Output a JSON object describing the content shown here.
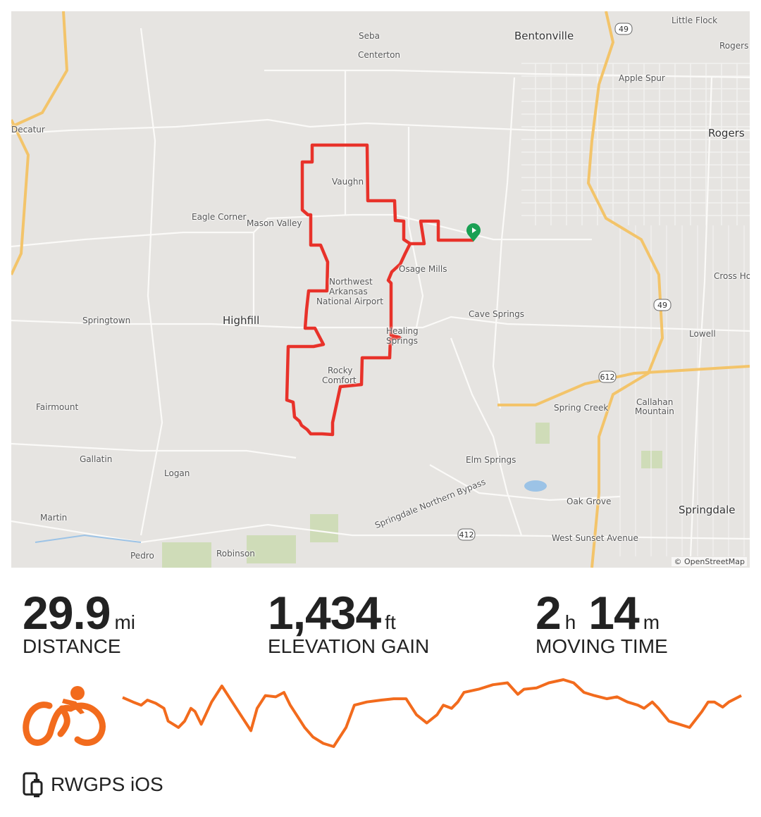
{
  "map": {
    "attribution": "© OpenStreetMap",
    "labels": [
      "Seba",
      "Bentonville",
      "Little Flock",
      "Centerton",
      "Rogers",
      "Apple Spur",
      "Decatur",
      "Rogers",
      "Vaughn",
      "Eagle Corner",
      "Mason Valley",
      "Osage Mills",
      "Cross Hol",
      "Northwest",
      "Arkansas",
      "National Airport",
      "Cave Springs",
      "Springtown",
      "Highfill",
      "Healing",
      "Springs",
      "Lowell",
      "Rocky",
      "Comfort",
      "Spring Creek",
      "Callahan",
      "Mountain",
      "Fairmount",
      "Elm Springs",
      "Gallatin",
      "Logan",
      "Oak Grove",
      "Springdale",
      "Martin",
      "Springdale Northern Bypass",
      "West Sunset Avenue",
      "Pedro",
      "Robinson"
    ],
    "shields": [
      "49",
      "49",
      "612",
      "412"
    ],
    "route_color": "#e8322a",
    "start_marker_color": "#1aa053"
  },
  "stats": [
    {
      "value": "29.9",
      "unit": "mi",
      "label": "DISTANCE"
    },
    {
      "value": "1,434",
      "unit": "ft",
      "label": "ELEVATION GAIN"
    },
    {
      "value": "2",
      "unit": "h",
      "value2": "14",
      "unit2": "m",
      "label": "MOVING TIME"
    }
  ],
  "activity_icon": "cyclist-icon",
  "accent_color": "#f26b1d",
  "elevation_profile": {
    "distance_mi": [
      0,
      0.5,
      0.9,
      1.2,
      1.6,
      2.0,
      2.2,
      2.7,
      3.0,
      3.3,
      3.5,
      3.8,
      4.3,
      4.8,
      5.3,
      5.8,
      6.2,
      6.5,
      6.9,
      7.4,
      7.8,
      8.1,
      8.4,
      8.8,
      9.2,
      9.7,
      10.2,
      10.8,
      11.2,
      11.8,
      12.5,
      13.1,
      13.7,
      14.2,
      14.7,
      15.2,
      15.5,
      15.9,
      16.2,
      16.5,
      17.2,
      17.9,
      18.6,
      19.1,
      19.4,
      20.0,
      20.6,
      21.3,
      21.8,
      22.3,
      22.8,
      23.4,
      23.9,
      24.4,
      24.9,
      25.2,
      25.6,
      25.9,
      26.4,
      26.9,
      27.4,
      28.0,
      28.3,
      28.6,
      29.0,
      29.3,
      29.9
    ],
    "relative_elevation": [
      77,
      70,
      65,
      73,
      68,
      60,
      40,
      30,
      40,
      60,
      55,
      35,
      70,
      95,
      70,
      45,
      25,
      60,
      80,
      78,
      85,
      65,
      50,
      30,
      15,
      5,
      0,
      30,
      65,
      70,
      73,
      75,
      75,
      50,
      37,
      50,
      65,
      60,
      70,
      85,
      90,
      97,
      100,
      82,
      90,
      92,
      100,
      105,
      100,
      85,
      80,
      75,
      78,
      70,
      65,
      60,
      70,
      60,
      40,
      35,
      30,
      55,
      70,
      70,
      62,
      70,
      80
    ]
  },
  "device": {
    "icon": "phone-watch-icon",
    "label": "RWGPS iOS"
  }
}
